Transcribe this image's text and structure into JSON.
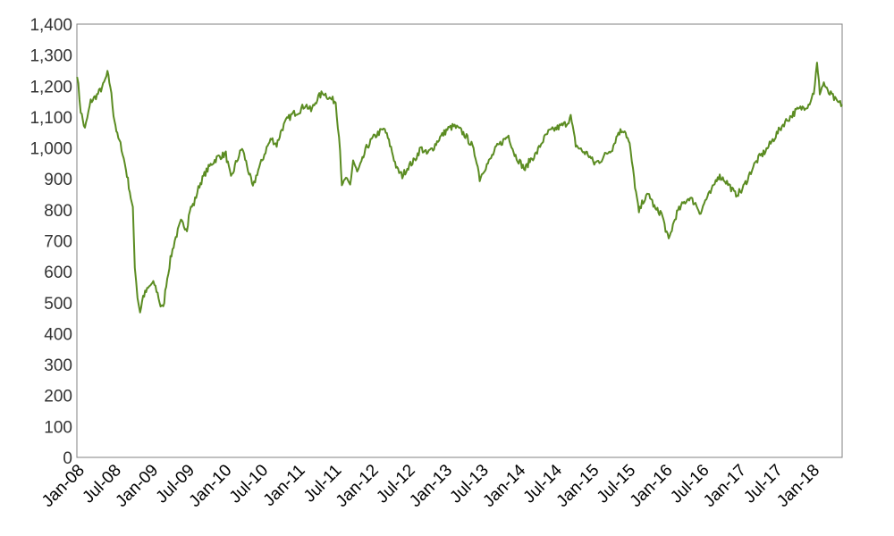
{
  "chart_data": {
    "type": "line",
    "title": "",
    "xlabel": "",
    "ylabel": "",
    "ylim": [
      0,
      1400
    ],
    "xlim": [
      "2008-01-01",
      "2018-05-31"
    ],
    "grid": false,
    "legend": "none",
    "y_ticks": [
      "0",
      "100",
      "200",
      "300",
      "400",
      "500",
      "600",
      "700",
      "800",
      "900",
      "1,000",
      "1,100",
      "1,200",
      "1,300",
      "1,400"
    ],
    "x_ticks": [
      "Jan-08",
      "Jul-08",
      "Jan-09",
      "Jul-09",
      "Jan-10",
      "Jul-10",
      "Jan-11",
      "Jul-11",
      "Jan-12",
      "Jul-12",
      "Jan-13",
      "Jul-13",
      "Jan-14",
      "Jul-14",
      "Jan-15",
      "Jul-15",
      "Jan-16",
      "Jul-16",
      "Jan-17",
      "Jul-17",
      "Jan-18"
    ],
    "series": [
      {
        "color": "#5b8c22",
        "x": [
          "2008-01-02",
          "2008-01-20",
          "2008-02-10",
          "2008-03-10",
          "2008-04-10",
          "2008-05-10",
          "2008-06-01",
          "2008-06-15",
          "2008-07-01",
          "2008-07-20",
          "2008-08-10",
          "2008-09-01",
          "2008-09-20",
          "2008-10-05",
          "2008-10-15",
          "2008-10-28",
          "2008-11-10",
          "2008-11-25",
          "2008-12-15",
          "2009-01-05",
          "2009-01-20",
          "2009-02-05",
          "2009-02-20",
          "2009-03-05",
          "2009-03-20",
          "2009-04-10",
          "2009-05-01",
          "2009-06-01",
          "2009-07-01",
          "2009-07-15",
          "2009-08-05",
          "2009-09-01",
          "2009-10-01",
          "2009-11-01",
          "2009-12-01",
          "2010-01-10",
          "2010-02-05",
          "2010-03-01",
          "2010-04-01",
          "2010-05-01",
          "2010-05-25",
          "2010-06-15",
          "2010-07-10",
          "2010-08-01",
          "2010-08-25",
          "2010-09-20",
          "2010-10-15",
          "2010-11-10",
          "2010-12-10",
          "2011-01-10",
          "2011-02-10",
          "2011-03-10",
          "2011-04-10",
          "2011-05-10",
          "2011-06-10",
          "2011-07-10",
          "2011-08-01",
          "2011-08-10",
          "2011-08-25",
          "2011-09-20",
          "2011-10-05",
          "2011-10-25",
          "2011-11-15",
          "2011-12-10",
          "2012-01-10",
          "2012-02-10",
          "2012-03-10",
          "2012-04-10",
          "2012-05-10",
          "2012-06-05",
          "2012-07-05",
          "2012-08-05",
          "2012-09-05",
          "2012-10-05",
          "2012-11-05",
          "2012-12-05",
          "2013-01-15",
          "2013-02-15",
          "2013-03-15",
          "2013-04-15",
          "2013-05-15",
          "2013-06-10",
          "2013-06-25",
          "2013-07-15",
          "2013-08-15",
          "2013-09-15",
          "2013-10-15",
          "2013-11-15",
          "2013-12-15",
          "2014-01-15",
          "2014-02-05",
          "2014-03-01",
          "2014-04-01",
          "2014-05-01",
          "2014-06-01",
          "2014-07-01",
          "2014-08-01",
          "2014-09-01",
          "2014-09-20",
          "2014-10-15",
          "2014-11-15",
          "2014-12-15",
          "2015-01-15",
          "2015-02-15",
          "2015-03-15",
          "2015-04-15",
          "2015-05-15",
          "2015-06-15",
          "2015-07-10",
          "2015-08-01",
          "2015-08-25",
          "2015-09-15",
          "2015-10-15",
          "2015-11-15",
          "2015-12-15",
          "2016-01-20",
          "2016-02-10",
          "2016-03-01",
          "2016-04-01",
          "2016-05-01",
          "2016-06-01",
          "2016-06-27",
          "2016-07-20",
          "2016-08-20",
          "2016-09-20",
          "2016-10-20",
          "2016-11-15",
          "2016-12-15",
          "2017-01-15",
          "2017-02-15",
          "2017-03-15",
          "2017-04-15",
          "2017-05-15",
          "2017-06-15",
          "2017-07-15",
          "2017-08-15",
          "2017-09-15",
          "2017-10-15",
          "2017-11-15",
          "2017-12-15",
          "2018-01-10",
          "2018-01-26",
          "2018-02-09",
          "2018-03-01",
          "2018-03-20",
          "2018-04-10",
          "2018-05-01",
          "2018-05-31"
        ],
        "values": [
          1240,
          1120,
          1060,
          1150,
          1170,
          1200,
          1240,
          1200,
          1110,
          1040,
          1000,
          930,
          860,
          800,
          620,
          520,
          470,
          520,
          540,
          560,
          560,
          530,
          490,
          480,
          560,
          640,
          700,
          760,
          740,
          800,
          820,
          880,
          920,
          950,
          970,
          980,
          900,
          950,
          1000,
          930,
          870,
          920,
          960,
          1000,
          1030,
          1010,
          1060,
          1090,
          1110,
          1120,
          1140,
          1120,
          1160,
          1180,
          1160,
          1150,
          1000,
          870,
          900,
          880,
          960,
          920,
          950,
          1000,
          1030,
          1050,
          1060,
          1000,
          930,
          910,
          940,
          960,
          1000,
          980,
          1000,
          1030,
          1060,
          1070,
          1060,
          1040,
          1010,
          960,
          900,
          930,
          960,
          1000,
          1020,
          1040,
          980,
          950,
          930,
          960,
          980,
          1020,
          1050,
          1060,
          1070,
          1080,
          1100,
          1010,
          990,
          980,
          950,
          960,
          980,
          1000,
          1050,
          1060,
          1010,
          900,
          790,
          830,
          850,
          800,
          790,
          700,
          750,
          790,
          820,
          840,
          820,
          790,
          830,
          860,
          910,
          900,
          880,
          850,
          860,
          900,
          940,
          970,
          990,
          1020,
          1050,
          1080,
          1100,
          1120,
          1130,
          1140,
          1180,
          1270,
          1180,
          1210,
          1180,
          1170,
          1150,
          1140
        ]
      }
    ]
  }
}
